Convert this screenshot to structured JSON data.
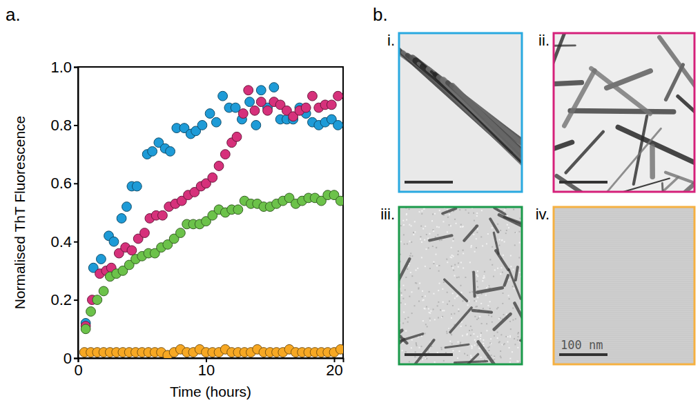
{
  "chart_data": {
    "type": "scatter",
    "panel_label": "a.",
    "x_label": "Time (hours)",
    "y_label": "Normalised ThT Fluorescence",
    "xlim": [
      0,
      20.7
    ],
    "ylim": [
      0,
      1
    ],
    "xticks": [
      0,
      10,
      20
    ],
    "yticks": [
      0,
      0.2,
      0.4,
      0.6,
      0.8,
      {
        "value": 1,
        "label": "1.0"
      }
    ],
    "marker": "circle",
    "grid": false,
    "series": [
      {
        "color": "#1e9bd7",
        "x": [
          0.6,
          1.2,
          1.8,
          2.4,
          2.8,
          3.4,
          3.8,
          4.2,
          4.6,
          5.4,
          5.8,
          6.3,
          6.8,
          7.2,
          7.7,
          8.3,
          8.8,
          9.2,
          9.7,
          10.3,
          10.8,
          11.3,
          11.8,
          12.3,
          12.8,
          13.4,
          13.9,
          14.3,
          14.8,
          15.3,
          15.8,
          16.3,
          16.8,
          17.3,
          17.8,
          18.3,
          18.8,
          19.3,
          19.8,
          20.3
        ],
        "values": [
          0.12,
          0.31,
          0.34,
          0.42,
          0.4,
          0.48,
          0.52,
          0.59,
          0.59,
          0.7,
          0.71,
          0.74,
          0.72,
          0.71,
          0.79,
          0.79,
          0.77,
          0.78,
          0.8,
          0.84,
          0.81,
          0.9,
          0.86,
          0.86,
          0.82,
          0.88,
          0.8,
          0.92,
          0.86,
          0.93,
          0.82,
          0.82,
          0.82,
          0.86,
          0.84,
          0.81,
          0.8,
          0.81,
          0.82,
          0.8
        ]
      },
      {
        "color": "#d6317b",
        "x": [
          0.6,
          1.1,
          1.7,
          2.2,
          2.6,
          3.2,
          3.7,
          4.2,
          4.7,
          5.2,
          5.6,
          6.1,
          6.6,
          7.1,
          7.6,
          8.1,
          8.6,
          9.1,
          9.6,
          10.0,
          10.5,
          11.0,
          11.5,
          12.0,
          12.4,
          12.9,
          13.3,
          13.8,
          14.3,
          14.8,
          15.3,
          15.8,
          16.3,
          16.8,
          17.3,
          17.8,
          18.3,
          18.8,
          19.3,
          19.8,
          20.3
        ],
        "values": [
          0.11,
          0.2,
          0.29,
          0.3,
          0.31,
          0.36,
          0.38,
          0.37,
          0.41,
          0.43,
          0.48,
          0.49,
          0.49,
          0.52,
          0.53,
          0.54,
          0.56,
          0.57,
          0.59,
          0.6,
          0.62,
          0.66,
          0.7,
          0.74,
          0.76,
          0.84,
          0.92,
          0.85,
          0.88,
          0.85,
          0.88,
          0.87,
          0.85,
          0.83,
          0.85,
          0.86,
          0.9,
          0.86,
          0.87,
          0.87,
          0.9
        ]
      },
      {
        "color": "#6cc24a",
        "x": [
          0.6,
          1.0,
          1.5,
          2.0,
          2.5,
          3.0,
          3.5,
          4.0,
          4.5,
          5.0,
          5.5,
          6.0,
          6.5,
          7.0,
          7.5,
          8.0,
          8.5,
          9.0,
          9.5,
          10.0,
          10.5,
          11.0,
          11.5,
          12.0,
          12.5,
          13.0,
          13.5,
          14.0,
          14.5,
          15.0,
          15.5,
          16.0,
          16.5,
          17.0,
          17.5,
          18.0,
          18.5,
          19.0,
          19.5,
          20.0,
          20.5
        ],
        "values": [
          0.1,
          0.16,
          0.2,
          0.23,
          0.28,
          0.29,
          0.3,
          0.32,
          0.34,
          0.35,
          0.36,
          0.36,
          0.38,
          0.39,
          0.41,
          0.43,
          0.46,
          0.46,
          0.46,
          0.47,
          0.49,
          0.51,
          0.5,
          0.51,
          0.51,
          0.54,
          0.53,
          0.53,
          0.52,
          0.52,
          0.53,
          0.54,
          0.55,
          0.53,
          0.54,
          0.55,
          0.55,
          0.54,
          0.56,
          0.56,
          0.54
        ]
      },
      {
        "color": "#f7a823",
        "x": [
          0.5,
          1.0,
          1.5,
          2.0,
          2.5,
          3.0,
          3.5,
          4.0,
          4.5,
          5.0,
          5.5,
          6.0,
          6.5,
          7.0,
          7.5,
          8.0,
          8.5,
          9.0,
          9.5,
          10.0,
          10.5,
          11.0,
          11.5,
          12.0,
          12.5,
          13.0,
          13.5,
          14.0,
          14.5,
          15.0,
          15.5,
          16.0,
          16.5,
          17.0,
          17.5,
          18.0,
          18.5,
          19.0,
          19.5,
          20.0,
          20.5
        ],
        "values": [
          0.02,
          0.02,
          0.02,
          0.02,
          0.02,
          0.02,
          0.02,
          0.02,
          0.02,
          0.02,
          0.02,
          0.02,
          0.02,
          0.01,
          0.02,
          0.03,
          0.02,
          0.02,
          0.03,
          0.02,
          0.02,
          0.02,
          0.03,
          0.02,
          0.02,
          0.02,
          0.02,
          0.03,
          0.02,
          0.02,
          0.02,
          0.02,
          0.03,
          0.02,
          0.02,
          0.02,
          0.02,
          0.02,
          0.02,
          0.02,
          0.03
        ]
      }
    ]
  },
  "panel_b": {
    "label": "b.",
    "images": [
      {
        "label": "i.",
        "color": "#29a9e0"
      },
      {
        "label": "ii.",
        "color": "#d5207a"
      },
      {
        "label": "iii.",
        "color": "#1a9a4a"
      },
      {
        "label": "iv.",
        "color": "#f5b041",
        "scale_label": "100 nm"
      }
    ]
  }
}
